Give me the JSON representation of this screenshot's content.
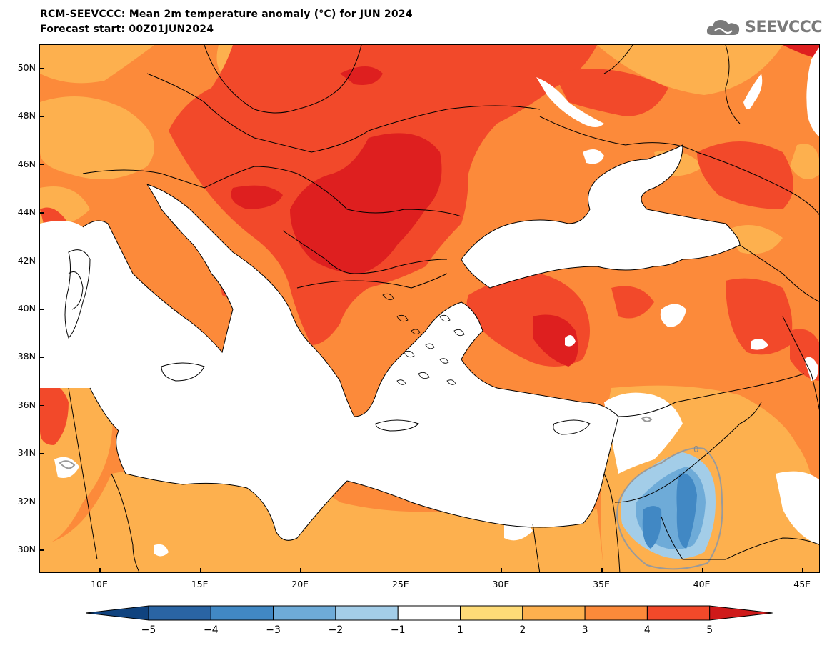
{
  "title_line1": "RCM-SEEVCCC: Mean 2m temperature anomaly (°C) for JUN 2024",
  "title_line2": "Forecast start: 00Z01JUN2024",
  "logo_text": "SEEVCCC",
  "map": {
    "lat_labels": [
      "50N",
      "48N",
      "46N",
      "44N",
      "42N",
      "40N",
      "38N",
      "36N",
      "34N",
      "32N",
      "30N"
    ],
    "lon_labels": [
      "10E",
      "15E",
      "20E",
      "25E",
      "30E",
      "35E",
      "40E",
      "45E"
    ],
    "contour_label": "0"
  },
  "colorbar": {
    "ticks": [
      "−5",
      "−4",
      "−3",
      "−2",
      "−1",
      "1",
      "2",
      "3",
      "4",
      "5"
    ],
    "colors": [
      "#2a64a3",
      "#4188c4",
      "#6eabd8",
      "#a3cde8",
      "#ffffff",
      "#fedb77",
      "#fdb04e",
      "#fc8a3a",
      "#f2492a"
    ],
    "low_extend_color": "#10437f",
    "high_extend_color": "#cf1a1a"
  },
  "palette": {
    "sea": "#ffffff",
    "land_1_2": "#fedb77",
    "land_2_3": "#fdb04e",
    "land_3_4": "#fc8a3a",
    "land_4_5": "#f2492a",
    "land_5_plus": "#de1f1f",
    "neg_1_2": "#a3cde8",
    "neg_2_3": "#6eabd8",
    "neg_3_4": "#4188c4"
  }
}
